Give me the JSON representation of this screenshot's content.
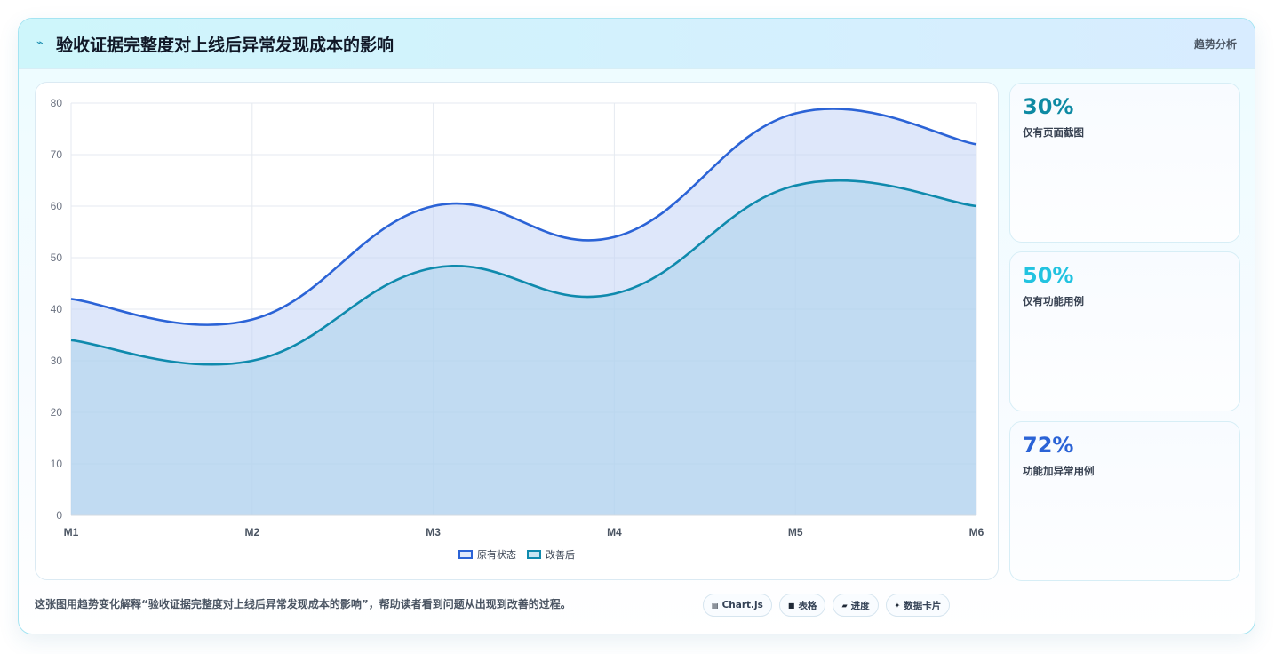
{
  "header": {
    "title": "验收证据完整度对上线后异常发现成本的影响",
    "tag": "趋势分析"
  },
  "chart_data": {
    "type": "area",
    "categories": [
      "M1",
      "M2",
      "M3",
      "M4",
      "M5",
      "M6"
    ],
    "ylim": [
      0,
      80
    ],
    "yticks": [
      0,
      10,
      20,
      30,
      40,
      50,
      60,
      70,
      80
    ],
    "grid": true,
    "legend_position": "bottom",
    "series": [
      {
        "name": "原有状态",
        "values": [
          42,
          38,
          60,
          54,
          78,
          72
        ],
        "color": "#2b63d6"
      },
      {
        "name": "改善后",
        "values": [
          34,
          30,
          48,
          43,
          64,
          60
        ],
        "color": "#0f8aad"
      }
    ]
  },
  "stats": [
    {
      "value": "30%",
      "label": "仅有页面截图",
      "color": "#0e8aa3"
    },
    {
      "value": "50%",
      "label": "仅有功能用例",
      "color": "#22c3e0"
    },
    {
      "value": "72%",
      "label": "功能加异常用例",
      "color": "#2b63d6"
    }
  ],
  "footer": {
    "description": "这张图用趋势变化解释“验收证据完整度对上线后异常发现成本的影响”，帮助读者看到问题从出现到改善的过程。",
    "chips": [
      {
        "icon": "▤",
        "label": "Chart.js"
      },
      {
        "icon": "■",
        "label": "表格"
      },
      {
        "icon": "▰",
        "label": "进度"
      },
      {
        "icon": "✦",
        "label": "数据卡片"
      }
    ]
  }
}
